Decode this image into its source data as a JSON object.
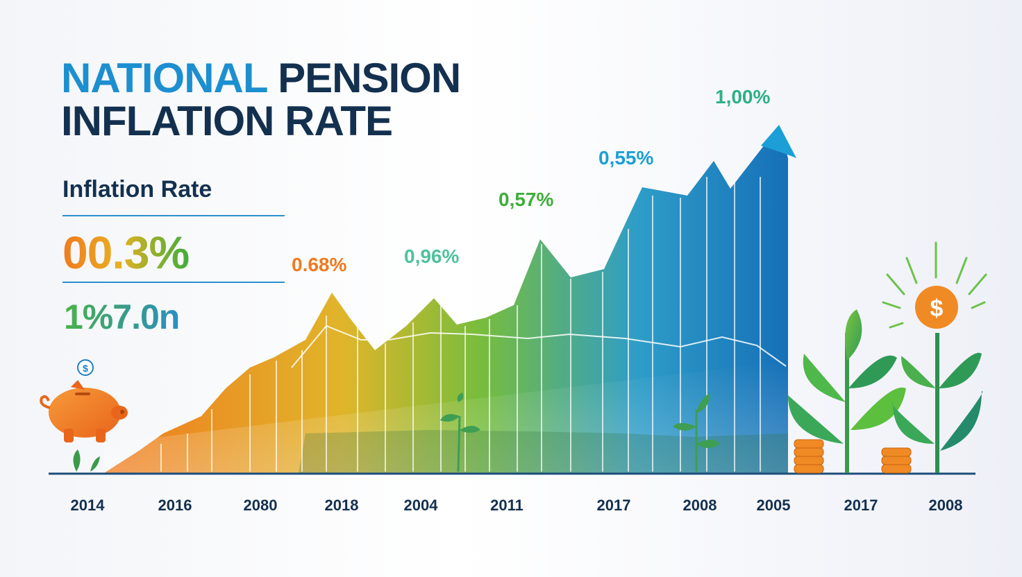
{
  "title": {
    "highlight": "NATIONAL",
    "rest_line1": " PENSION",
    "line2": "INFLATION RATE"
  },
  "subtitle": "Inflation Rate",
  "big_rate": "00.3%",
  "secondary_value": "1%7.0n",
  "chart_data": {
    "type": "area",
    "categories": [
      "2014",
      "2016",
      "2080",
      "2018",
      "2004",
      "2011",
      "2017",
      "2008",
      "2005",
      "2017",
      "2008"
    ],
    "point_labels": [
      {
        "text": "0.68%",
        "color": "#f07a1f"
      },
      {
        "text": "0,96%",
        "color": "#4fc29a"
      },
      {
        "text": "0,57%",
        "color": "#3fae3a"
      },
      {
        "text": "0,55%",
        "color": "#1c9fd6"
      },
      {
        "text": "1,00%",
        "color": "#2db083"
      }
    ],
    "colors": {
      "start": "#f07a1f",
      "mid": "#7cc03a",
      "end": "#1670b8"
    },
    "legend": "none",
    "grid": true
  },
  "icons": {
    "piggy": "piggy-bank-icon",
    "coin": "dollar-coin-icon",
    "plant": "plant-icon",
    "sun": "sun-coin-icon"
  },
  "icon_text": {
    "dollar": "$"
  }
}
